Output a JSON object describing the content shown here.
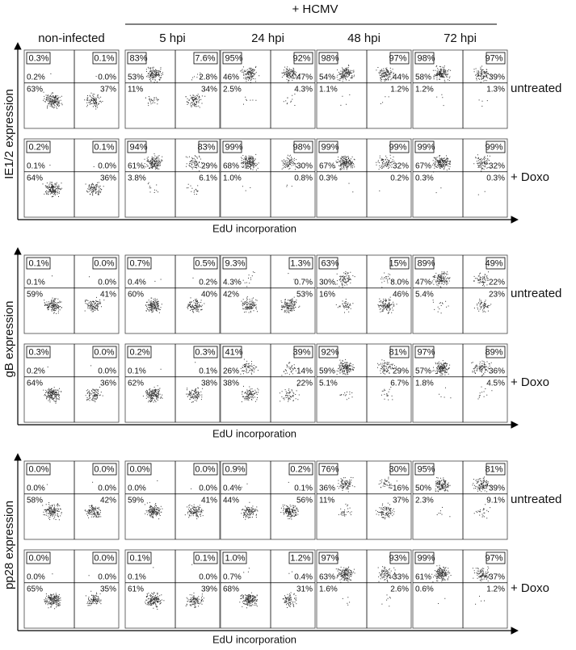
{
  "header": "+ HCMV",
  "columns": [
    "non-infected",
    "5 hpi",
    "24 hpi",
    "48 hpi",
    "72 hpi"
  ],
  "rows": [
    "untreated",
    "+ Doxo"
  ],
  "x_axis": "EdU incorporation",
  "blocks": [
    {
      "y_axis": "IE1/2 expression",
      "panels": [
        [
          [
            "0.3%",
            "0.1%",
            "0.2%",
            "0.0%",
            "63%",
            "37%"
          ],
          [
            "83%",
            "7.6%",
            "53%",
            "2.8%",
            "11%",
            "34%"
          ],
          [
            "95%",
            "92%",
            "46%",
            "47%",
            "2.5%",
            "4.3%"
          ],
          [
            "98%",
            "97%",
            "54%",
            "44%",
            "1.1%",
            "1.2%"
          ],
          [
            "98%",
            "97%",
            "58%",
            "39%",
            "1.2%",
            "1.3%"
          ]
        ],
        [
          [
            "0.2%",
            "0.1%",
            "0.1%",
            "0.0%",
            "64%",
            "36%"
          ],
          [
            "94%",
            "83%",
            "61%",
            "29%",
            "3.8%",
            "6.1%"
          ],
          [
            "99%",
            "98%",
            "68%",
            "30%",
            "1.0%",
            "0.8%"
          ],
          [
            "99%",
            "99%",
            "67%",
            "32%",
            "0.3%",
            "0.2%"
          ],
          [
            "99%",
            "99%",
            "67%",
            "32%",
            "0.3%",
            "0.3%"
          ]
        ]
      ]
    },
    {
      "y_axis": "gB expression",
      "panels": [
        [
          [
            "0.1%",
            "0.0%",
            "0.1%",
            "0.0%",
            "59%",
            "41%"
          ],
          [
            "0.7%",
            "0.5%",
            "0.4%",
            "0.2%",
            "60%",
            "40%"
          ],
          [
            "9.3%",
            "1.3%",
            "4.3%",
            "0.7%",
            "42%",
            "53%"
          ],
          [
            "63%",
            "15%",
            "30%",
            "8.0%",
            "16%",
            "46%"
          ],
          [
            "89%",
            "49%",
            "47%",
            "22%",
            "5.4%",
            "23%"
          ]
        ],
        [
          [
            "0.3%",
            "0.0%",
            "0.2%",
            "0.0%",
            "64%",
            "36%"
          ],
          [
            "0.2%",
            "0.3%",
            "0.1%",
            "0.1%",
            "62%",
            "38%"
          ],
          [
            "41%",
            "39%",
            "26%",
            "14%",
            "38%",
            "22%"
          ],
          [
            "92%",
            "81%",
            "59%",
            "29%",
            "5.1%",
            "6.7%"
          ],
          [
            "97%",
            "89%",
            "57%",
            "36%",
            "1.8%",
            "4.5%"
          ]
        ]
      ]
    },
    {
      "y_axis": "pp28 expression",
      "panels": [
        [
          [
            "0.0%",
            "0.0%",
            "0.0%",
            "0.0%",
            "58%",
            "42%"
          ],
          [
            "0.0%",
            "0.0%",
            "0.0%",
            "0.0%",
            "59%",
            "41%"
          ],
          [
            "0.9%",
            "0.2%",
            "0.4%",
            "0.1%",
            "44%",
            "56%"
          ],
          [
            "76%",
            "30%",
            "36%",
            "16%",
            "11%",
            "37%"
          ],
          [
            "95%",
            "81%",
            "50%",
            "39%",
            "2.3%",
            "9.1%"
          ]
        ],
        [
          [
            "0.0%",
            "0.0%",
            "0.0%",
            "0.0%",
            "65%",
            "35%"
          ],
          [
            "0.1%",
            "0.1%",
            "0.1%",
            "0.0%",
            "61%",
            "39%"
          ],
          [
            "1.0%",
            "1.2%",
            "0.7%",
            "0.4%",
            "68%",
            "31%"
          ],
          [
            "97%",
            "93%",
            "63%",
            "33%",
            "1.6%",
            "2.6%"
          ],
          [
            "99%",
            "97%",
            "61%",
            "37%",
            "0.6%",
            "1.2%"
          ]
        ]
      ]
    }
  ]
}
